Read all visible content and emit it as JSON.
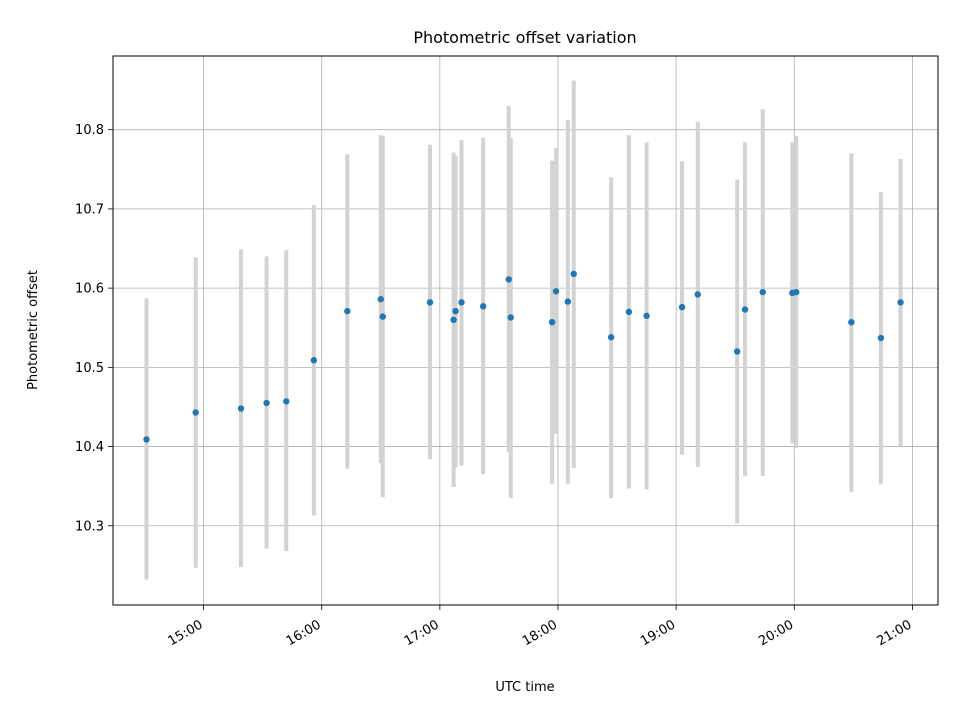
{
  "chart_data": {
    "type": "scatter",
    "title": "Photometric offset variation",
    "xlabel": "UTC time",
    "ylabel": "Photometric offset",
    "x_tick_labels": [
      "15:00",
      "16:00",
      "17:00",
      "18:00",
      "19:00",
      "20:00",
      "21:00"
    ],
    "x_ticks": [
      "15:00",
      "16:00",
      "17:00",
      "18:00",
      "19:00",
      "20:00",
      "21:00"
    ],
    "y_ticks": [
      10.3,
      10.4,
      10.5,
      10.6,
      10.7,
      10.8
    ],
    "y_tick_labels": [
      "10.3",
      "10.4",
      "10.5",
      "10.6",
      "10.7",
      "10.8"
    ],
    "xlim": [
      "14:14",
      "21:13"
    ],
    "ylim": [
      10.2,
      10.893
    ],
    "grid": true,
    "marker_color": "#1f77b4",
    "errorbar_color": "#d3d3d3",
    "points": [
      {
        "time": "14:31",
        "y": 10.409,
        "lo": 10.232,
        "hi": 10.587
      },
      {
        "time": "14:56",
        "y": 10.443,
        "lo": 10.247,
        "hi": 10.639
      },
      {
        "time": "15:19",
        "y": 10.448,
        "lo": 10.248,
        "hi": 10.649
      },
      {
        "time": "15:32",
        "y": 10.455,
        "lo": 10.271,
        "hi": 10.64
      },
      {
        "time": "15:42",
        "y": 10.457,
        "lo": 10.268,
        "hi": 10.648
      },
      {
        "time": "15:56",
        "y": 10.509,
        "lo": 10.313,
        "hi": 10.705
      },
      {
        "time": "16:13",
        "y": 10.571,
        "lo": 10.372,
        "hi": 10.769
      },
      {
        "time": "16:30",
        "y": 10.586,
        "lo": 10.379,
        "hi": 10.793
      },
      {
        "time": "16:31",
        "y": 10.564,
        "lo": 10.336,
        "hi": 10.792
      },
      {
        "time": "16:55",
        "y": 10.582,
        "lo": 10.384,
        "hi": 10.781
      },
      {
        "time": "17:07",
        "y": 10.56,
        "lo": 10.349,
        "hi": 10.771
      },
      {
        "time": "17:08",
        "y": 10.571,
        "lo": 10.374,
        "hi": 10.767
      },
      {
        "time": "17:11",
        "y": 10.582,
        "lo": 10.376,
        "hi": 10.787
      },
      {
        "time": "17:22",
        "y": 10.577,
        "lo": 10.365,
        "hi": 10.79
      },
      {
        "time": "17:35",
        "y": 10.611,
        "lo": 10.393,
        "hi": 10.83
      },
      {
        "time": "17:36",
        "y": 10.563,
        "lo": 10.335,
        "hi": 10.79
      },
      {
        "time": "17:57",
        "y": 10.557,
        "lo": 10.353,
        "hi": 10.761
      },
      {
        "time": "17:59",
        "y": 10.596,
        "lo": 10.416,
        "hi": 10.777
      },
      {
        "time": "18:05",
        "y": 10.583,
        "lo": 10.353,
        "hi": 10.812
      },
      {
        "time": "18:08",
        "y": 10.618,
        "lo": 10.373,
        "hi": 10.862
      },
      {
        "time": "18:27",
        "y": 10.538,
        "lo": 10.335,
        "hi": 10.74
      },
      {
        "time": "18:36",
        "y": 10.57,
        "lo": 10.347,
        "hi": 10.793
      },
      {
        "time": "18:45",
        "y": 10.565,
        "lo": 10.346,
        "hi": 10.784
      },
      {
        "time": "19:03",
        "y": 10.576,
        "lo": 10.39,
        "hi": 10.76
      },
      {
        "time": "19:11",
        "y": 10.592,
        "lo": 10.374,
        "hi": 10.81
      },
      {
        "time": "19:31",
        "y": 10.52,
        "lo": 10.303,
        "hi": 10.737
      },
      {
        "time": "19:35",
        "y": 10.573,
        "lo": 10.363,
        "hi": 10.784
      },
      {
        "time": "19:44",
        "y": 10.595,
        "lo": 10.363,
        "hi": 10.826
      },
      {
        "time": "19:59",
        "y": 10.594,
        "lo": 10.404,
        "hi": 10.784
      },
      {
        "time": "20:01",
        "y": 10.595,
        "lo": 10.398,
        "hi": 10.792
      },
      {
        "time": "20:29",
        "y": 10.557,
        "lo": 10.343,
        "hi": 10.77
      },
      {
        "time": "20:44",
        "y": 10.537,
        "lo": 10.353,
        "hi": 10.721
      },
      {
        "time": "20:54",
        "y": 10.582,
        "lo": 10.4,
        "hi": 10.763
      }
    ]
  }
}
